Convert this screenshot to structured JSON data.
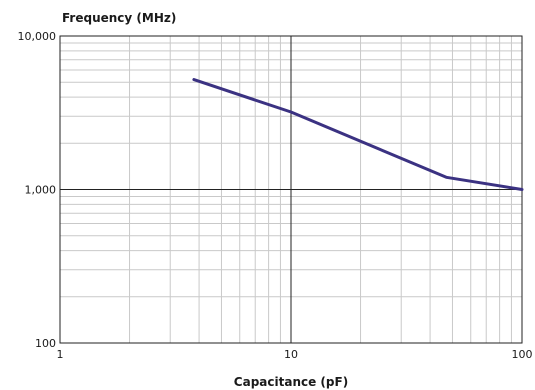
{
  "chart_data": {
    "type": "line",
    "title": "",
    "ylabel": "Frequency (MHz)",
    "xlabel": "Capacitance (pF)",
    "x_scale": "log",
    "y_scale": "log",
    "xlim": [
      1,
      100
    ],
    "ylim": [
      100,
      10000
    ],
    "x_ticks": [
      1,
      10,
      100
    ],
    "x_tick_labels": [
      "1",
      "10",
      "100"
    ],
    "y_ticks": [
      100,
      1000,
      10000
    ],
    "y_tick_labels": [
      "100",
      "1,000",
      "10,000"
    ],
    "grid": true,
    "legend": "none",
    "series": [
      {
        "color": "#3b3282",
        "x": [
          3.8,
          10,
          47,
          100
        ],
        "y": [
          5200,
          3200,
          1200,
          1000
        ]
      }
    ]
  }
}
